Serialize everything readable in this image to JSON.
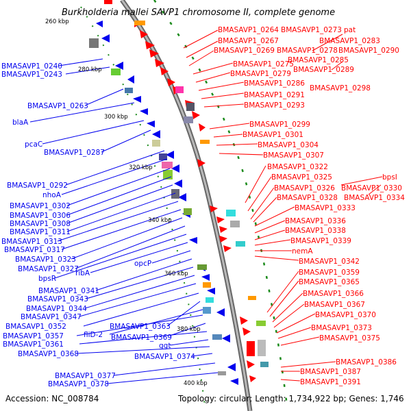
{
  "title": "Burkholderia mallei SAVP1 chromosome II, complete genome",
  "accession": "Accession: NC_008784",
  "topology": "Topology: circular; Length: 1,734,922 bp; Genes: 1,746",
  "scale": [
    "260 kbp",
    "280 kbp",
    "300 kbp",
    "320 kbp",
    "340 kbp",
    "360 kbp",
    "380 kbp",
    "400 kbp"
  ],
  "colors": {
    "forward": "#ff0000",
    "reverse": "#0000ee",
    "backbone": "#888888"
  },
  "labels_right": [
    "BMASAVP1_0264",
    "BMASAVP1_0273",
    "pat",
    "BMASAVP1_0267",
    "BMASAVP1_0283",
    "BMASAVP1_0269",
    "BMASAVP1_0278",
    "BMASAVP1_0290",
    "BMASAVP1_0285",
    "BMASAVP1_0275",
    "BMASAVP1_0289",
    "BMASAVP1_0279",
    "BMASAVP1_0286",
    "BMASAVP1_0298",
    "BMASAVP1_0291",
    "BMASAVP1_0293",
    "BMASAVP1_0299",
    "BMASAVP1_0301",
    "BMASAVP1_0304",
    "BMASAVP1_0307",
    "BMASAVP1_0322",
    "BMASAVP1_0325",
    "bpsI",
    "BMASAVP1_0326",
    "BMASAVP1_0330",
    "BMASAVP1_0328",
    "BMASAVP1_0334",
    "BMASAVP1_0333",
    "BMASAVP1_0336",
    "BMASAVP1_0338",
    "BMASAVP1_0339",
    "nemA",
    "BMASAVP1_0342",
    "BMASAVP1_0359",
    "BMASAVP1_0365",
    "BMASAVP1_0366",
    "BMASAVP1_0367",
    "BMASAVP1_0370",
    "BMASAVP1_0373",
    "BMASAVP1_0375",
    "BMASAVP1_0386",
    "BMASAVP1_0387",
    "BMASAVP1_0391"
  ],
  "labels_left": [
    "BMASAVP1_0240",
    "BMASAVP1_0243",
    "BMASAVP1_0263",
    "blaA",
    "pcaC",
    "BMASAVP1_0287",
    "BMASAVP1_0292",
    "nhoA",
    "BMASAVP1_0302",
    "BMASAVP1_0306",
    "BMASAVP1_0308",
    "BMASAVP1_0311",
    "BMASAVP1_0313",
    "BMASAVP1_0317",
    "BMASAVP1_0323",
    "BMASAVP1_0327",
    "bpsR",
    "ribA",
    "opcP",
    "BMASAVP1_0341",
    "BMASAVP1_0343",
    "BMASAVP1_0344",
    "BMASAVP1_0347",
    "BMASAVP1_0352",
    "BMASAVP1_0363",
    "fliD-2",
    "BMASAVP1_0357",
    "BMASAVP1_0369",
    "BMASAVP1_0361",
    "ggt",
    "BMASAVP1_0368",
    "BMASAVP1_0374",
    "BMASAVP1_0377",
    "BMASAVP1_0378"
  ]
}
